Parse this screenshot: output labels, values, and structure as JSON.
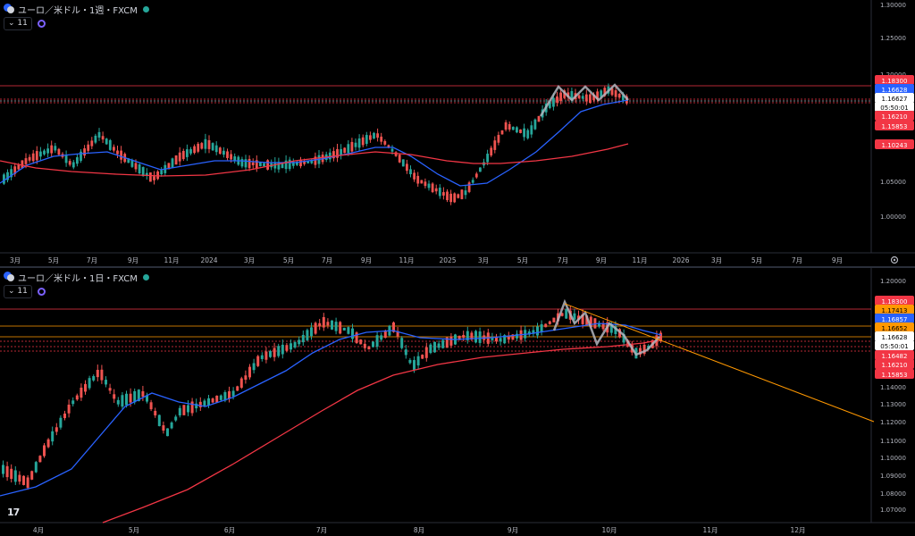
{
  "weekly": {
    "title": "ユーロ／米ドル・1週・FXCM",
    "indicator_count": "11",
    "y_ticks": [
      "1.30000",
      "1.25000",
      "1.20000",
      "1.05000",
      "1.00000"
    ],
    "x_ticks": [
      "3月",
      "5月",
      "7月",
      "9月",
      "11月",
      "2024",
      "3月",
      "5月",
      "7月",
      "9月",
      "11月",
      "2025",
      "3月",
      "5月",
      "7月",
      "9月",
      "11月",
      "2026",
      "3月",
      "5月",
      "7月",
      "9月"
    ],
    "price_labels": [
      {
        "text": "1.18300",
        "color": "#f23645",
        "fg": "#ffffff"
      },
      {
        "text": "1.16628",
        "color": "#2962ff",
        "fg": "#ffffff"
      },
      {
        "text": "1.16627",
        "color": "#ffffff",
        "fg": "#000000"
      },
      {
        "text": "05:50:01",
        "color": "#ffffff",
        "fg": "#000000"
      },
      {
        "text": "1.16210",
        "color": "#f23645",
        "fg": "#ffffff"
      },
      {
        "text": "1.15853",
        "color": "#f23645",
        "fg": "#ffffff"
      },
      {
        "text": "1.10243",
        "color": "#f23645",
        "fg": "#ffffff"
      }
    ]
  },
  "daily": {
    "title": "ユーロ／米ドル・1日・FXCM",
    "indicator_count": "11",
    "y_ticks": [
      "1.20000",
      "1.14000",
      "1.13000",
      "1.12000",
      "1.11000",
      "1.10000",
      "1.09000",
      "1.08000",
      "1.07000"
    ],
    "x_ticks": [
      "4月",
      "5月",
      "6月",
      "7月",
      "8月",
      "9月",
      "10月",
      "11月",
      "12月"
    ],
    "price_labels": [
      {
        "text": "1.18300",
        "color": "#f23645",
        "fg": "#ffffff"
      },
      {
        "text": "1.17413",
        "color": "#ff9800",
        "fg": "#000000"
      },
      {
        "text": "1.16857",
        "color": "#2962ff",
        "fg": "#ffffff"
      },
      {
        "text": "1.16652",
        "color": "#ff9800",
        "fg": "#000000"
      },
      {
        "text": "1.16628",
        "color": "#ffffff",
        "fg": "#000000"
      },
      {
        "text": "05:50:01",
        "color": "#ffffff",
        "fg": "#000000"
      },
      {
        "text": "1.16482",
        "color": "#f23645",
        "fg": "#ffffff"
      },
      {
        "text": "1.16210",
        "color": "#f23645",
        "fg": "#ffffff"
      },
      {
        "text": "1.15853",
        "color": "#f23645",
        "fg": "#ffffff"
      }
    ]
  },
  "logo_text": "17",
  "colors": {
    "up": "#26a69a",
    "down": "#ef5350",
    "ma_short": "#2962ff",
    "ma_long": "#f23645",
    "trend": "#ff9800",
    "pattern": "#b2b5be"
  },
  "icons": [
    "symbol-icon",
    "live-status-icon",
    "indicator-icon",
    "settings-icon",
    "tradingview-logo"
  ]
}
